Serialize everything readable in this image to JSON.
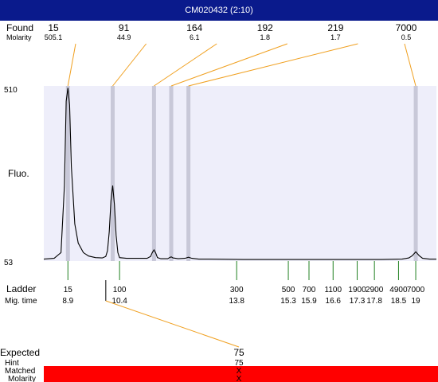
{
  "window_title": "CM020432 (2:10)",
  "colors": {
    "title_bar": "#0a1a8c",
    "plot_background": "#eeeefa",
    "peak_band": "#c8c8d8",
    "connector_line": "#f0a020",
    "ladder_marker": "#208020",
    "matched_bar": "#ff0000",
    "trace": "#000000"
  },
  "labels": {
    "found": "Found",
    "molarity": "Molarity",
    "ladder": "Ladder",
    "mig_time": "Mig. time",
    "y_axis": "Fluo.",
    "expected": "Expected",
    "hint": "Hint",
    "matched": "Matched",
    "molarity_bottom": "Molarity"
  },
  "chart_data": {
    "type": "line",
    "ylabel": "Fluo.",
    "ylim": [
      53,
      510
    ],
    "y_ticks": [
      "510",
      "53"
    ],
    "x_range_mig_time": [
      8.2,
      19.6
    ],
    "found_peaks": [
      {
        "size": "15",
        "molarity": "505.1",
        "mig_time": 8.9
      },
      {
        "size": "91",
        "molarity": "44.9",
        "mig_time": 10.2
      },
      {
        "size": "164",
        "molarity": "6.1",
        "mig_time": 11.4
      },
      {
        "size": "192",
        "molarity": "1.8",
        "mig_time": 11.9
      },
      {
        "size": "219",
        "molarity": "1.7",
        "mig_time": 12.4
      },
      {
        "size": "7000",
        "molarity": "0.5",
        "mig_time": 19.0
      }
    ],
    "ladder": [
      {
        "size": "15",
        "mig_time": "8.9"
      },
      {
        "size": "100",
        "mig_time": "10.4"
      },
      {
        "size": "300",
        "mig_time": "13.8"
      },
      {
        "size": "500",
        "mig_time": "15.3"
      },
      {
        "size": "700",
        "mig_time": "15.9"
      },
      {
        "size": "1100",
        "mig_time": "16.6"
      },
      {
        "size": "1900",
        "mig_time": "17.3"
      },
      {
        "size": "2900",
        "mig_time": "17.8"
      },
      {
        "size": "4900",
        "mig_time": "18.5"
      },
      {
        "size": "7000",
        "mig_time": "19"
      }
    ],
    "trace": [
      [
        8.2,
        58
      ],
      [
        8.5,
        60
      ],
      [
        8.7,
        75
      ],
      [
        8.8,
        250
      ],
      [
        8.85,
        470
      ],
      [
        8.9,
        505
      ],
      [
        8.95,
        460
      ],
      [
        9.0,
        300
      ],
      [
        9.1,
        150
      ],
      [
        9.2,
        100
      ],
      [
        9.35,
        75
      ],
      [
        9.5,
        66
      ],
      [
        9.7,
        62
      ],
      [
        9.9,
        61
      ],
      [
        10.0,
        65
      ],
      [
        10.05,
        80
      ],
      [
        10.1,
        130
      ],
      [
        10.15,
        210
      ],
      [
        10.2,
        250
      ],
      [
        10.25,
        200
      ],
      [
        10.3,
        120
      ],
      [
        10.35,
        75
      ],
      [
        10.4,
        62
      ],
      [
        10.6,
        60
      ],
      [
        10.9,
        60
      ],
      [
        11.2,
        60
      ],
      [
        11.3,
        65
      ],
      [
        11.35,
        75
      ],
      [
        11.4,
        82
      ],
      [
        11.45,
        74
      ],
      [
        11.5,
        62
      ],
      [
        11.6,
        59
      ],
      [
        11.8,
        59
      ],
      [
        11.85,
        62
      ],
      [
        11.9,
        64
      ],
      [
        11.95,
        61
      ],
      [
        12.1,
        59
      ],
      [
        12.3,
        60
      ],
      [
        12.4,
        63
      ],
      [
        12.5,
        60
      ],
      [
        12.7,
        58
      ],
      [
        13.0,
        58
      ],
      [
        14.0,
        57
      ],
      [
        15.0,
        57
      ],
      [
        16.0,
        57
      ],
      [
        17.0,
        57
      ],
      [
        18.0,
        57
      ],
      [
        18.6,
        58
      ],
      [
        18.8,
        61
      ],
      [
        18.9,
        67
      ],
      [
        19.0,
        77
      ],
      [
        19.1,
        67
      ],
      [
        19.2,
        60
      ],
      [
        19.4,
        58
      ],
      [
        19.6,
        58
      ]
    ],
    "expected": {
      "value": "75",
      "hint": "75",
      "matched": "X",
      "molarity": "X",
      "mig_time": 10.0
    }
  }
}
